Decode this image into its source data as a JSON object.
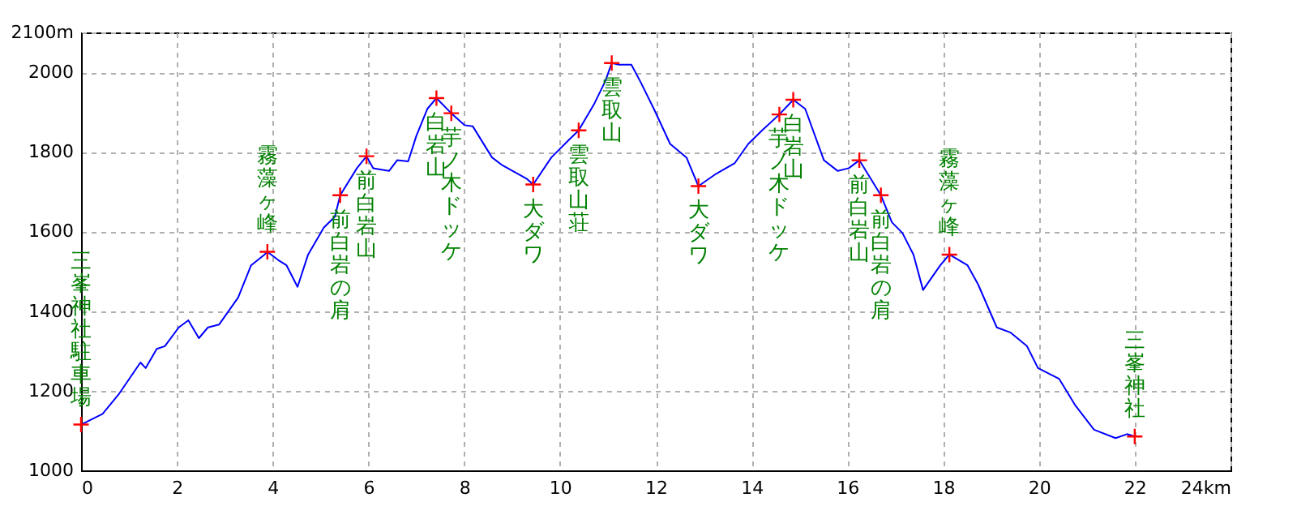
{
  "chart_data": {
    "type": "line",
    "xlim": [
      0,
      24
    ],
    "xticks": [
      0,
      2,
      4,
      6,
      8,
      10,
      12,
      14,
      16,
      18,
      20,
      22,
      {
        "value": 24,
        "label": "24km"
      }
    ],
    "ylim": [
      1000,
      2100
    ],
    "yticks": [
      1000,
      1200,
      1400,
      1600,
      1800,
      2000,
      {
        "value": 2100,
        "label": "2100m"
      }
    ],
    "grid": true,
    "line_style": "solid",
    "series": [
      {
        "color": "#0000ff",
        "x": [
          0,
          0.45,
          0.78,
          1.24,
          1.35,
          1.58,
          1.75,
          2.04,
          2.24,
          2.46,
          2.65,
          2.88,
          3.28,
          3.55,
          3.83,
          3.89,
          4.12,
          4.29,
          4.52,
          4.74,
          5.07,
          5.3,
          5.41,
          5.76,
          5.96,
          6.1,
          6.43,
          6.6,
          6.83,
          7.0,
          7.23,
          7.42,
          7.73,
          8.01,
          8.18,
          8.58,
          8.8,
          9.31,
          9.44,
          9.82,
          10.16,
          10.39,
          10.72,
          10.94,
          11.08,
          11.23,
          11.49,
          11.68,
          11.96,
          12.3,
          12.64,
          12.89,
          13.26,
          13.65,
          13.93,
          14.22,
          14.58,
          14.87,
          15.12,
          15.51,
          15.8,
          16.03,
          16.25,
          16.7,
          16.93,
          17.15,
          17.38,
          17.58,
          17.94,
          18.13,
          18.51,
          18.73,
          19.12,
          19.41,
          19.75,
          19.98,
          20.42,
          20.76,
          21.15,
          21.6,
          21.84,
          22.0
        ],
        "values": [
          1115,
          1142,
          1190,
          1271,
          1257,
          1305,
          1312,
          1359,
          1377,
          1332,
          1359,
          1366,
          1434,
          1515,
          1542,
          1549,
          1528,
          1515,
          1461,
          1542,
          1610,
          1637,
          1691,
          1759,
          1789,
          1759,
          1752,
          1779,
          1776,
          1840,
          1908,
          1935,
          1897,
          1867,
          1864,
          1786,
          1766,
          1732,
          1718,
          1786,
          1827,
          1854,
          1922,
          1976,
          2023,
          2019,
          2019,
          1976,
          1908,
          1820,
          1786,
          1714,
          1745,
          1772,
          1820,
          1854,
          1894,
          1931,
          1908,
          1779,
          1752,
          1759,
          1779,
          1691,
          1623,
          1596,
          1542,
          1453,
          1515,
          1542,
          1515,
          1467,
          1359,
          1346,
          1312,
          1257,
          1230,
          1163,
          1102,
          1081,
          1091,
          1085
        ]
      },
      {
        "type": "scatter",
        "color": "#ff0000",
        "marker": "cross",
        "x": [
          0,
          3.89,
          5.41,
          5.96,
          7.42,
          7.73,
          9.44,
          10.39,
          11.08,
          12.89,
          14.58,
          14.87,
          16.25,
          16.7,
          18.13,
          22.0
        ],
        "values": [
          1115,
          1549,
          1691,
          1789,
          1935,
          1897,
          1718,
          1854,
          2023,
          1714,
          1894,
          1931,
          1779,
          1691,
          1542,
          1085
        ]
      }
    ],
    "annotations": [
      {
        "text": "三峯神社駐車場",
        "x": 0,
        "y": 1115
      },
      {
        "text": "霧藻ヶ峰",
        "x": 3.89,
        "y": 1549
      },
      {
        "text": "前白岩の肩",
        "x": 5.41,
        "y": 1691
      },
      {
        "text": "前白岩山",
        "x": 5.96,
        "y": 1789
      },
      {
        "text": "白岩山",
        "x": 7.42,
        "y": 1935
      },
      {
        "text": "芋ノ木ドッケ",
        "x": 7.73,
        "y": 1897
      },
      {
        "text": "大ダワ",
        "x": 9.44,
        "y": 1718
      },
      {
        "text": "雲取山荘",
        "x": 10.39,
        "y": 1854
      },
      {
        "text": "雲取山",
        "x": 11.08,
        "y": 2023
      },
      {
        "text": "大ダワ",
        "x": 12.89,
        "y": 1714
      },
      {
        "text": "芋ノ木ドッケ",
        "x": 14.58,
        "y": 1894
      },
      {
        "text": "白岩山",
        "x": 14.87,
        "y": 1931
      },
      {
        "text": "前白岩山",
        "x": 16.25,
        "y": 1779
      },
      {
        "text": "前白岩の肩",
        "x": 16.7,
        "y": 1691
      },
      {
        "text": "霧藻ヶ峰",
        "x": 18.13,
        "y": 1542
      },
      {
        "text": "三峯神社",
        "x": 22.0,
        "y": 1085
      }
    ]
  }
}
